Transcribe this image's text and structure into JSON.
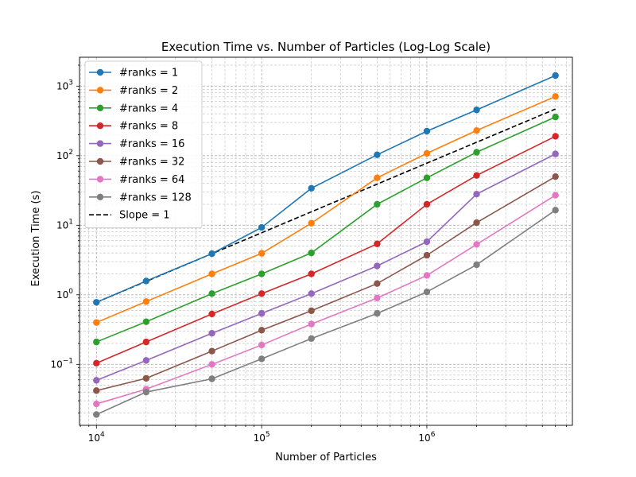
{
  "chart_data": {
    "type": "line",
    "title": "Execution Time vs. Number of Particles (Log-Log Scale)",
    "xlabel": "Number of Particles",
    "ylabel": "Execution Time (s)",
    "xscale": "log",
    "yscale": "log",
    "xlim": [
      7900,
      7600000
    ],
    "ylim": [
      0.0133,
      2600
    ],
    "grid": "both (major and minor), dashed",
    "legend_position": "top-left",
    "x": [
      10000,
      20000,
      50000,
      100000,
      200000,
      500000,
      1000000,
      2000000,
      6000000
    ],
    "series": [
      {
        "name": "#ranks = 1",
        "color": "#1f77b4",
        "values": [
          0.78,
          1.58,
          3.9,
          9.3,
          34,
          103,
          225,
          455,
          1420
        ]
      },
      {
        "name": "#ranks = 2",
        "color": "#ff7f0e",
        "values": [
          0.4,
          0.8,
          2.0,
          3.95,
          10.7,
          48,
          108,
          230,
          710
        ]
      },
      {
        "name": "#ranks = 4",
        "color": "#2ca02c",
        "values": [
          0.21,
          0.41,
          1.04,
          2.0,
          4.0,
          20,
          48,
          112,
          360
        ]
      },
      {
        "name": "#ranks = 8",
        "color": "#d62728",
        "values": [
          0.104,
          0.21,
          0.53,
          1.04,
          2.0,
          5.4,
          20,
          52,
          190
        ]
      },
      {
        "name": "#ranks = 16",
        "color": "#9467bd",
        "values": [
          0.059,
          0.114,
          0.28,
          0.54,
          1.04,
          2.6,
          5.8,
          28,
          106
        ]
      },
      {
        "name": "#ranks = 32",
        "color": "#8c564b",
        "values": [
          0.042,
          0.063,
          0.155,
          0.31,
          0.59,
          1.45,
          3.7,
          10.9,
          50
        ]
      },
      {
        "name": "#ranks = 64",
        "color": "#e377c2",
        "values": [
          0.027,
          0.044,
          0.1,
          0.19,
          0.38,
          0.9,
          1.9,
          5.3,
          27
        ]
      },
      {
        "name": "#ranks = 128",
        "color": "#7f7f7f",
        "values": [
          0.019,
          0.04,
          0.062,
          0.12,
          0.235,
          0.54,
          1.1,
          2.7,
          16.5
        ]
      }
    ],
    "reference_line": {
      "name": "Slope = 1",
      "color": "#000000",
      "style": "dashed",
      "x": [
        10000,
        6000000
      ],
      "values": [
        0.78,
        468
      ]
    },
    "xticks": [
      {
        "base": "10",
        "exp": "4",
        "value": 10000
      },
      {
        "base": "10",
        "exp": "5",
        "value": 100000
      },
      {
        "base": "10",
        "exp": "6",
        "value": 1000000
      }
    ],
    "yticks": [
      {
        "base": "10",
        "exp": "−1",
        "value": 0.1
      },
      {
        "base": "10",
        "exp": "0",
        "value": 1
      },
      {
        "base": "10",
        "exp": "1",
        "value": 10
      },
      {
        "base": "10",
        "exp": "2",
        "value": 100
      },
      {
        "base": "10",
        "exp": "3",
        "value": 1000
      }
    ]
  }
}
